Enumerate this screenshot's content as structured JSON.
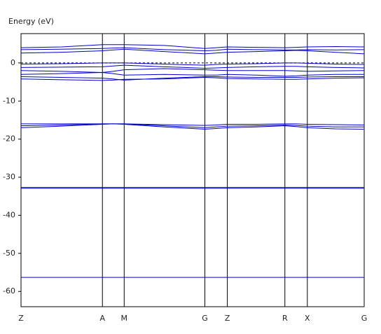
{
  "chart_data": {
    "type": "line",
    "y_axis_label": "Energy (eV)",
    "x": [
      0,
      58,
      116,
      131,
      147,
      204,
      262,
      278,
      294,
      335,
      376,
      392,
      408,
      448,
      489
    ],
    "xlim": [
      0,
      489
    ],
    "xticks": [
      {
        "value": 0,
        "label": "Z"
      },
      {
        "value": 116,
        "label": "A"
      },
      {
        "value": 147,
        "label": "M"
      },
      {
        "value": 262,
        "label": "G"
      },
      {
        "value": 294,
        "label": "Z"
      },
      {
        "value": 376,
        "label": "R"
      },
      {
        "value": 408,
        "label": "X"
      },
      {
        "value": 489,
        "label": "G"
      }
    ],
    "ylim": [
      -64,
      7.7
    ],
    "yticks": [
      -60,
      -50,
      -40,
      -30,
      -20,
      -10,
      0
    ],
    "fermi_level": 0,
    "grid": true,
    "series": [
      {
        "color": "#0000cc",
        "values": [
          4,
          4.2,
          4.8,
          4.8,
          4.8,
          4.6,
          3.8,
          4,
          4.2,
          4.1,
          4,
          4.1,
          4.2,
          4.3,
          4.2
        ]
      },
      {
        "color": "#0000cc",
        "values": [
          3.5,
          3.6,
          3.8,
          3.9,
          4,
          3.5,
          3.2,
          3.3,
          3.6,
          3.5,
          3.4,
          3.4,
          3.5,
          3.4,
          3.5
        ]
      },
      {
        "color": "#0000cc",
        "values": [
          2.6,
          2.8,
          3.2,
          3.4,
          3.6,
          3,
          2.4,
          2.6,
          2.8,
          3,
          3.2,
          3.3,
          3.2,
          2.8,
          2.4
        ]
      },
      {
        "color": "#0000cc",
        "values": [
          -0.3,
          -0.2,
          0,
          0,
          0,
          -0.3,
          -0.6,
          -0.4,
          -0.3,
          -0.2,
          0,
          0,
          -0.1,
          -0.3,
          -0.4
        ]
      },
      {
        "color": "#0000cc",
        "values": [
          -1.2,
          -1.1,
          -1,
          -0.8,
          -0.6,
          -1,
          -1.4,
          -1.3,
          -1.2,
          -1,
          -0.9,
          -0.9,
          -1,
          -1.2,
          -1.3
        ]
      },
      {
        "color": "#0000cc",
        "values": [
          -2,
          -2.2,
          -2.5,
          -2.2,
          -1.8,
          -1.5,
          -1.8,
          -1.9,
          -2,
          -2,
          -2,
          -2.1,
          -2.2,
          -2.1,
          -2
        ]
      },
      {
        "color": "#0000cc",
        "values": [
          -3,
          -2.8,
          -2.5,
          -2.8,
          -3.2,
          -3,
          -3.2,
          -3.2,
          -3,
          -3.2,
          -3.5,
          -3.4,
          -3.2,
          -3,
          -3
        ]
      },
      {
        "color": "#0000cc",
        "values": [
          -3.6,
          -3.8,
          -4,
          -4.2,
          -4.5,
          -4,
          -3.6,
          -3.6,
          -3.7,
          -3.8,
          -3.8,
          -3.8,
          -3.7,
          -3.6,
          -3.6
        ]
      },
      {
        "color": "#0000cc",
        "values": [
          -4.2,
          -4.4,
          -4.6,
          -4.5,
          -4.3,
          -4.2,
          -3.8,
          -3.9,
          -4.1,
          -4.2,
          -4.3,
          -4.3,
          -4.2,
          -4,
          -3.9
        ]
      },
      {
        "color": "#0000cc",
        "values": [
          -16,
          -16,
          -16,
          -16,
          -16,
          -16.2,
          -16.4,
          -16.3,
          -16.1,
          -16.1,
          -16,
          -16,
          -16.1,
          -16.2,
          -16.3
        ]
      },
      {
        "color": "#0000cc",
        "values": [
          -16.5,
          -16.3,
          -16,
          -16,
          -16,
          -16.5,
          -17,
          -16.8,
          -16.6,
          -16.5,
          -16.3,
          -16.4,
          -16.6,
          -16.8,
          -16.8
        ]
      },
      {
        "color": "#0000cc",
        "values": [
          -17,
          -16.6,
          -16.1,
          -16,
          -16.1,
          -16.8,
          -17.4,
          -17.2,
          -17,
          -16.8,
          -16.5,
          -16.7,
          -17,
          -17.3,
          -17.4
        ]
      },
      {
        "color": "#0000cc",
        "values": [
          -32.7,
          -32.7,
          -32.7,
          -32.7,
          -32.7,
          -32.7,
          -32.7,
          -32.7,
          -32.7,
          -32.7,
          -32.7,
          -32.7,
          -32.7,
          -32.7,
          -32.7
        ]
      },
      {
        "color": "#0000cc",
        "values": [
          -32.9,
          -32.9,
          -32.9,
          -32.9,
          -32.9,
          -32.9,
          -32.9,
          -32.9,
          -32.9,
          -32.9,
          -32.9,
          -32.9,
          -32.9,
          -32.9,
          -32.9
        ]
      },
      {
        "color": "#0000cc",
        "values": [
          -56.3,
          -56.3,
          -56.3,
          -56.3,
          -56.3,
          -56.3,
          -56.3,
          -56.3,
          -56.3,
          -56.3,
          -56.3,
          -56.3,
          -56.3,
          -56.3,
          -56.3
        ]
      }
    ]
  }
}
